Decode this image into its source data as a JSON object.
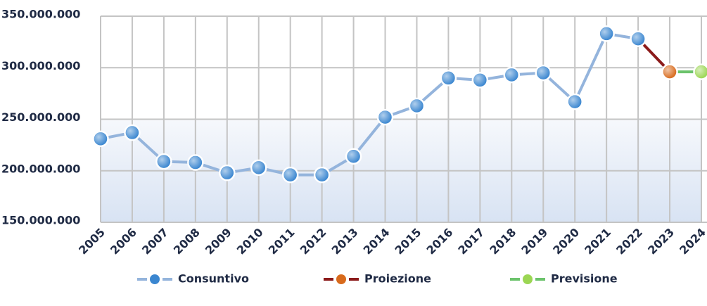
{
  "chart_data": {
    "type": "line",
    "x": [
      "2005",
      "2006",
      "2007",
      "2008",
      "2009",
      "2010",
      "2011",
      "2012",
      "2013",
      "2014",
      "2015",
      "2016",
      "2017",
      "2018",
      "2019",
      "2020",
      "2021",
      "2022",
      "2023",
      "2024"
    ],
    "series": [
      {
        "name": "Consuntivo",
        "color": "#94b4dc",
        "marker_color": "#3a86d0",
        "values": [
          231000000,
          237000000,
          209000000,
          208000000,
          198000000,
          203000000,
          196000000,
          196000000,
          214000000,
          252000000,
          263000000,
          290000000,
          288000000,
          293000000,
          295000000,
          267000000,
          333000000,
          328000000,
          null,
          null
        ]
      },
      {
        "name": "Proiezione",
        "color": "#8b1a1a",
        "marker_color": "#d86a1c",
        "values": [
          null,
          null,
          null,
          null,
          null,
          null,
          null,
          null,
          null,
          null,
          null,
          null,
          null,
          null,
          null,
          null,
          null,
          null,
          296000000,
          null
        ]
      },
      {
        "name": "Previsione",
        "color": "#6cc36c",
        "marker_color": "#9bd653",
        "values": [
          null,
          null,
          null,
          null,
          null,
          null,
          null,
          null,
          null,
          null,
          null,
          null,
          null,
          null,
          null,
          null,
          null,
          null,
          null,
          296000000
        ]
      }
    ],
    "ylim": [
      150000000,
      350000000
    ],
    "yticks": [
      {
        "value": 150000000,
        "label": "150.000.000"
      },
      {
        "value": 200000000,
        "label": "200.000.000"
      },
      {
        "value": 250000000,
        "label": "250.000.000"
      },
      {
        "value": 300000000,
        "label": "300.000.000"
      },
      {
        "value": 350000000,
        "label": "350.000.000"
      }
    ],
    "grid": true,
    "legend": "bottom"
  }
}
